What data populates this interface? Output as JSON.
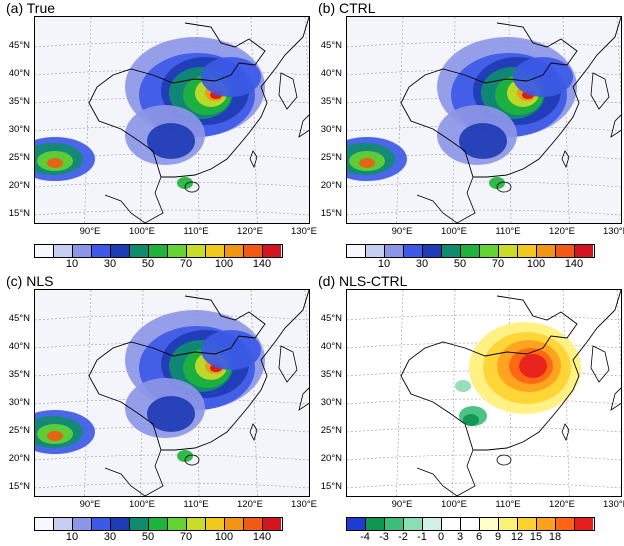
{
  "panels": [
    {
      "title": "(a) True",
      "kind": "precip"
    },
    {
      "title": "(b) CTRL",
      "kind": "precip"
    },
    {
      "title": "(c) NLS",
      "kind": "precip"
    },
    {
      "title": "(d) NLS-CTRL",
      "kind": "diff"
    }
  ],
  "lat_labels": [
    "45°N",
    "40°N",
    "35°N",
    "30°N",
    "25°N",
    "20°N",
    "15°N"
  ],
  "lon_labels": [
    "90°E",
    "100°E",
    "110°E",
    "120°E",
    "130°E"
  ],
  "precip_colorbar": {
    "labels": [
      "10",
      "30",
      "50",
      "70",
      "100",
      "140"
    ],
    "colors": [
      "#f7f7ff",
      "#c8cdf2",
      "#8c96e6",
      "#3c5ae6",
      "#1e3cb4",
      "#0f8c6e",
      "#1eb43c",
      "#64d232",
      "#c8dc28",
      "#f0c81e",
      "#f09614",
      "#f05a14",
      "#d2141e"
    ]
  },
  "diff_colorbar": {
    "labels": [
      "-4",
      "-3",
      "-2",
      "-1",
      "0",
      "3",
      "6",
      "9",
      "12",
      "15",
      "18"
    ],
    "colors": [
      "#1e3cd2",
      "#0f9650",
      "#3cbe78",
      "#8cdcb4",
      "#d2f0e6",
      "#ffffff",
      "#ffffff",
      "#ffffc8",
      "#fff078",
      "#ffd232",
      "#ffa01e",
      "#ff6414",
      "#e61e1e"
    ]
  }
}
